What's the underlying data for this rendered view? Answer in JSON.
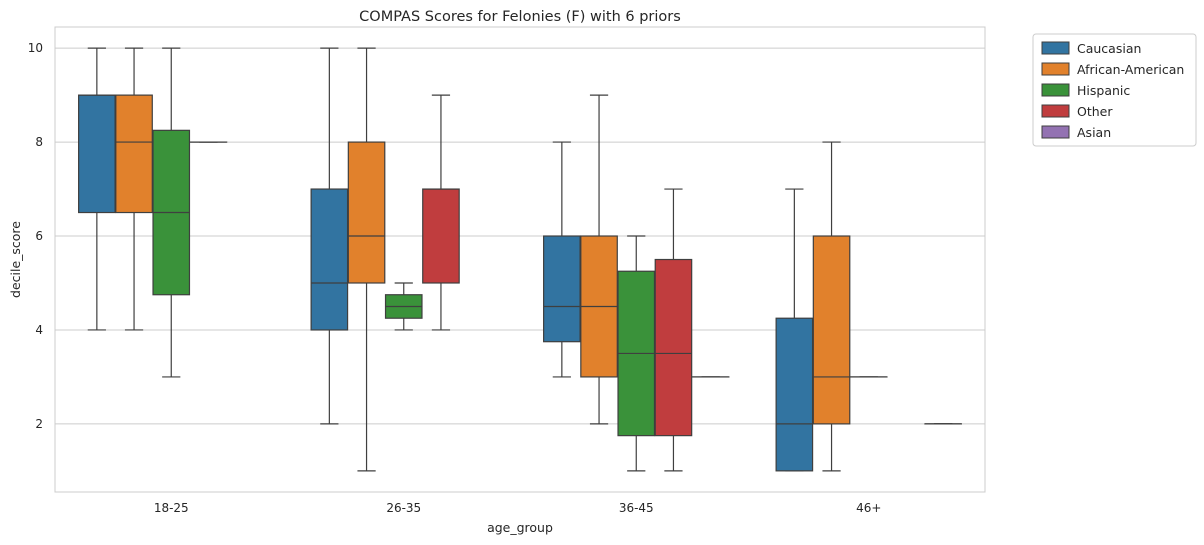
{
  "chart_data": {
    "type": "boxplot",
    "title": "COMPAS Scores for Felonies (F) with 6 priors",
    "xlabel": "age_group",
    "ylabel": "decile_score",
    "categories": [
      "18-25",
      "26-35",
      "36-45",
      "46+"
    ],
    "ylim": [
      0.55,
      10.45
    ],
    "yticks": [
      2,
      4,
      6,
      8,
      10
    ],
    "grid": true,
    "legend_position": "outside-top-right",
    "series": [
      {
        "name": "Caucasian",
        "color": "#3274a1",
        "boxes": [
          {
            "category": "18-25",
            "whislo": 4,
            "q1": 6.5,
            "med": 9,
            "q3": 9,
            "whishi": 10
          },
          {
            "category": "26-35",
            "whislo": 2,
            "q1": 4,
            "med": 5,
            "q3": 7,
            "whishi": 10
          },
          {
            "category": "36-45",
            "whislo": 3,
            "q1": 3.75,
            "med": 4.5,
            "q3": 6,
            "whishi": 8
          },
          {
            "category": "46+",
            "whislo": 1,
            "q1": 1,
            "med": 2,
            "q3": 4.25,
            "whishi": 7
          }
        ]
      },
      {
        "name": "African-American",
        "color": "#e1812c",
        "boxes": [
          {
            "category": "18-25",
            "whislo": 4,
            "q1": 6.5,
            "med": 8,
            "q3": 9,
            "whishi": 10
          },
          {
            "category": "26-35",
            "whislo": 1,
            "q1": 5,
            "med": 6,
            "q3": 8,
            "whishi": 10
          },
          {
            "category": "36-45",
            "whislo": 2,
            "q1": 3,
            "med": 4.5,
            "q3": 6,
            "whishi": 9
          },
          {
            "category": "46+",
            "whislo": 1,
            "q1": 2,
            "med": 3,
            "q3": 6,
            "whishi": 8
          }
        ]
      },
      {
        "name": "Hispanic",
        "color": "#3a923a",
        "boxes": [
          {
            "category": "18-25",
            "whislo": 3,
            "q1": 4.75,
            "med": 6.5,
            "q3": 8.25,
            "whishi": 10
          },
          {
            "category": "26-35",
            "whislo": 4,
            "q1": 4.25,
            "med": 4.5,
            "q3": 4.75,
            "whishi": 5
          },
          {
            "category": "36-45",
            "whislo": 1,
            "q1": 1.75,
            "med": 3.5,
            "q3": 5.25,
            "whishi": 6
          },
          {
            "category": "46+",
            "whislo": 3,
            "q1": 3,
            "med": 3,
            "q3": 3,
            "whishi": 3
          }
        ]
      },
      {
        "name": "Other",
        "color": "#c03d3e",
        "boxes": [
          {
            "category": "18-25",
            "whislo": 8,
            "q1": 8,
            "med": 8,
            "q3": 8,
            "whishi": 8
          },
          {
            "category": "26-35",
            "whislo": 4,
            "q1": 5,
            "med": 7,
            "q3": 7,
            "whishi": 9
          },
          {
            "category": "36-45",
            "whislo": 1,
            "q1": 1.75,
            "med": 3.5,
            "q3": 5.5,
            "whishi": 7
          }
        ]
      },
      {
        "name": "Asian",
        "color": "#9372b2",
        "boxes": [
          {
            "category": "36-45",
            "whislo": 3,
            "q1": 3,
            "med": 3,
            "q3": 3,
            "whishi": 3
          },
          {
            "category": "46+",
            "whislo": 2,
            "q1": 2,
            "med": 2,
            "q3": 2,
            "whishi": 2
          }
        ]
      }
    ]
  }
}
